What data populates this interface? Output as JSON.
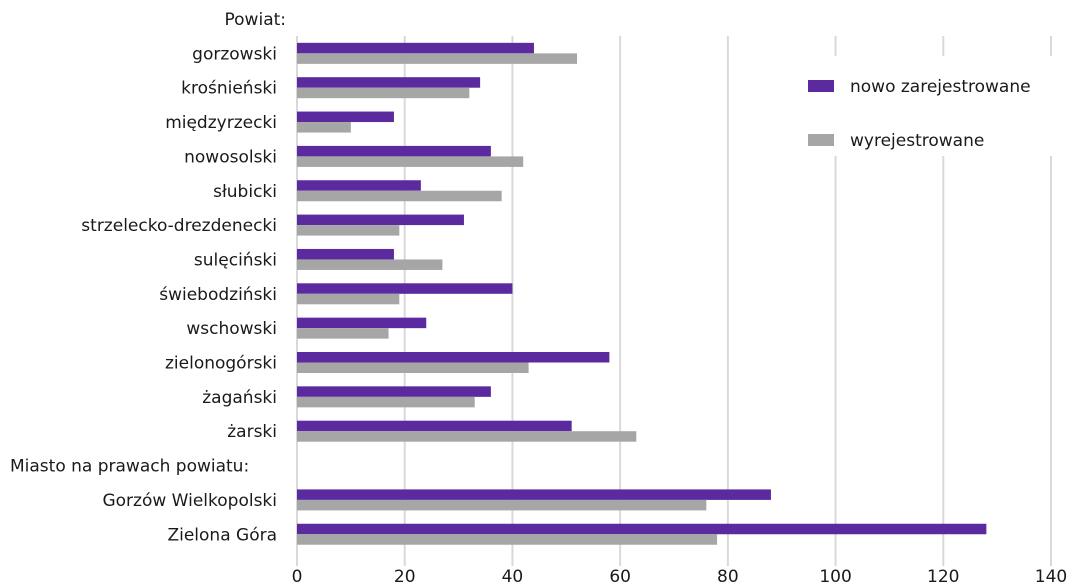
{
  "chart_data": {
    "type": "bar",
    "orientation": "horizontal",
    "rows": [
      {
        "label": "Powiat:",
        "header": true
      },
      {
        "label": "gorzowski",
        "values": [
          44,
          52
        ]
      },
      {
        "label": "krośnieński",
        "values": [
          34,
          32
        ]
      },
      {
        "label": "międzyrzecki",
        "values": [
          18,
          10
        ]
      },
      {
        "label": "nowosolski",
        "values": [
          36,
          42
        ]
      },
      {
        "label": "słubicki",
        "values": [
          23,
          38
        ]
      },
      {
        "label": "strzelecko-drezdenecki",
        "values": [
          31,
          19
        ]
      },
      {
        "label": "sulęciński",
        "values": [
          18,
          27
        ]
      },
      {
        "label": "świebodziński",
        "values": [
          40,
          19
        ]
      },
      {
        "label": "wschowski",
        "values": [
          24,
          17
        ]
      },
      {
        "label": "zielonogórski",
        "values": [
          58,
          43
        ]
      },
      {
        "label": "żagański",
        "values": [
          36,
          33
        ]
      },
      {
        "label": "żarski",
        "values": [
          51,
          63
        ]
      },
      {
        "label": "Miasto na prawach powiatu:",
        "header": true
      },
      {
        "label": "Gorzów Wielkopolski",
        "values": [
          88,
          76
        ]
      },
      {
        "label": "Zielona Góra",
        "values": [
          128,
          78
        ]
      }
    ],
    "series": [
      {
        "name": "nowo zarejestrowane",
        "color": "#5a2a9e"
      },
      {
        "name": "wyrejestrowane",
        "color": "#a6a6a6"
      }
    ],
    "xlim": [
      0,
      140
    ],
    "xticks": [
      "0",
      "20",
      "40",
      "60",
      "80",
      "100",
      "120",
      "140"
    ],
    "grid": true,
    "legend_position": "top-right"
  }
}
